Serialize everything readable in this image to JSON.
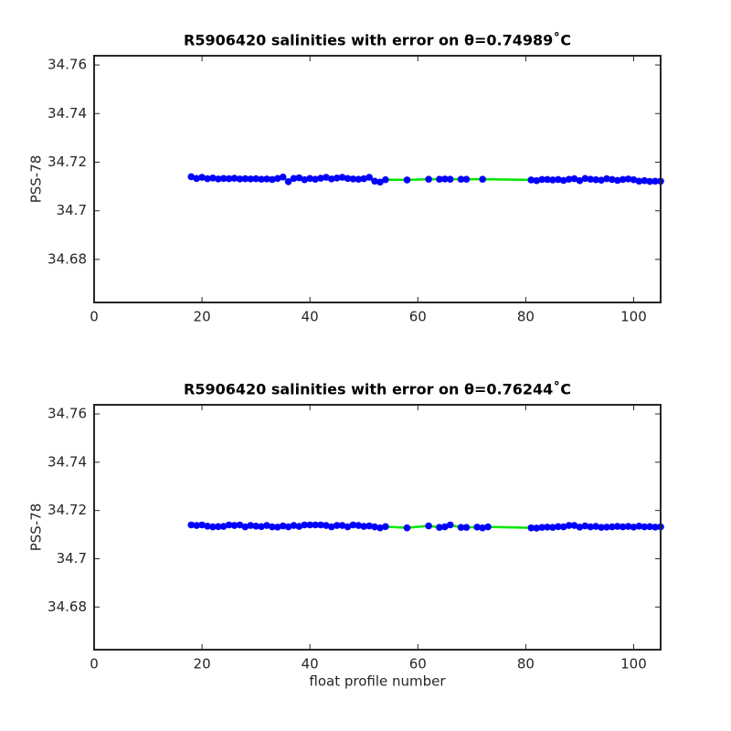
{
  "chart_data": [
    {
      "type": "errorbar-line",
      "title": "R5906420 salinities with error on θ=0.74989˚C",
      "ylabel": "PSS-78",
      "xlim": [
        0,
        105
      ],
      "xticks": [
        0,
        20,
        40,
        60,
        80,
        100
      ],
      "ylim": [
        34.6623,
        34.7638
      ],
      "yticks": [
        34.68,
        34.7,
        34.72,
        34.74,
        34.76
      ],
      "line_color": "#00e600",
      "marker_color": "#0000ff",
      "error_color": "#ff0000",
      "error": 0.0008,
      "x": [
        18,
        19,
        20,
        21,
        22,
        23,
        24,
        25,
        26,
        27,
        28,
        29,
        30,
        31,
        32,
        33,
        34,
        35,
        36,
        37,
        38,
        39,
        40,
        41,
        42,
        43,
        44,
        45,
        46,
        47,
        48,
        49,
        50,
        51,
        52,
        53,
        54,
        58,
        62,
        64,
        65,
        66,
        68,
        69,
        72,
        81,
        82,
        83,
        84,
        85,
        86,
        87,
        88,
        89,
        90,
        91,
        92,
        93,
        94,
        95,
        96,
        97,
        98,
        99,
        100,
        101,
        102,
        103,
        104,
        105
      ],
      "values": [
        34.714,
        34.7133,
        34.7138,
        34.7132,
        34.7135,
        34.7131,
        34.7133,
        34.7132,
        34.7134,
        34.7131,
        34.7132,
        34.7131,
        34.7132,
        34.713,
        34.7131,
        34.7129,
        34.7133,
        34.7139,
        34.712,
        34.7133,
        34.7136,
        34.7128,
        34.7133,
        34.713,
        34.7134,
        34.7138,
        34.7131,
        34.7135,
        34.7138,
        34.7133,
        34.7131,
        34.713,
        34.7132,
        34.7138,
        34.7122,
        34.7118,
        34.7128,
        34.7127,
        34.713,
        34.713,
        34.7131,
        34.713,
        34.713,
        34.713,
        34.713,
        34.7127,
        34.7124,
        34.7129,
        34.7129,
        34.7127,
        34.7129,
        34.7125,
        34.713,
        34.7132,
        34.7124,
        34.7133,
        34.713,
        34.7128,
        34.7126,
        34.7132,
        34.7129,
        34.7125,
        34.7129,
        34.7131,
        34.7128,
        34.7122,
        34.7124,
        34.7121,
        34.7122,
        34.7122
      ]
    },
    {
      "type": "errorbar-line",
      "title": "R5906420 salinities with error on θ=0.76244˚C",
      "ylabel": "PSS-78",
      "xlabel": "float profile number",
      "xlim": [
        0,
        105
      ],
      "xticks": [
        0,
        20,
        40,
        60,
        80,
        100
      ],
      "ylim": [
        34.6623,
        34.7638
      ],
      "yticks": [
        34.68,
        34.7,
        34.72,
        34.74,
        34.76
      ],
      "line_color": "#00e600",
      "marker_color": "#0000ff",
      "error_color": "#ff0000",
      "error": 0.0008,
      "x": [
        18,
        19,
        20,
        21,
        22,
        23,
        24,
        25,
        26,
        27,
        28,
        29,
        30,
        31,
        32,
        33,
        34,
        35,
        36,
        37,
        38,
        39,
        40,
        41,
        42,
        43,
        44,
        45,
        46,
        47,
        48,
        49,
        50,
        51,
        52,
        53,
        54,
        58,
        62,
        64,
        65,
        66,
        68,
        69,
        71,
        72,
        73,
        81,
        82,
        83,
        84,
        85,
        86,
        87,
        88,
        89,
        90,
        91,
        92,
        93,
        94,
        95,
        96,
        97,
        98,
        99,
        100,
        101,
        102,
        103,
        104,
        105
      ],
      "values": [
        34.714,
        34.7138,
        34.714,
        34.7135,
        34.7132,
        34.7133,
        34.7134,
        34.714,
        34.7138,
        34.714,
        34.7132,
        34.7138,
        34.7135,
        34.7133,
        34.7138,
        34.7132,
        34.7131,
        34.7136,
        34.7132,
        34.7138,
        34.7134,
        34.714,
        34.714,
        34.714,
        34.714,
        34.7138,
        34.7132,
        34.7138,
        34.7138,
        34.7132,
        34.714,
        34.7138,
        34.7134,
        34.7136,
        34.7132,
        34.7128,
        34.7133,
        34.7128,
        34.7136,
        34.713,
        34.7132,
        34.714,
        34.713,
        34.713,
        34.7131,
        34.7128,
        34.7132,
        34.7128,
        34.7127,
        34.713,
        34.7131,
        34.713,
        34.7133,
        34.7132,
        34.7138,
        34.7138,
        34.7131,
        34.7136,
        34.7132,
        34.7134,
        34.713,
        34.7131,
        34.7132,
        34.7134,
        34.7132,
        34.7134,
        34.7131,
        34.7135,
        34.7132,
        34.7133,
        34.7131,
        34.7132
      ]
    }
  ]
}
